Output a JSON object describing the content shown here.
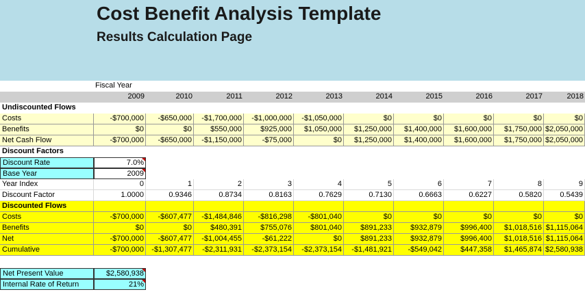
{
  "title": "Cost Benefit Analysis Template",
  "subtitle": "Results Calculation Page",
  "fiscal_year_label": "Fiscal Year",
  "years": [
    "2009",
    "2010",
    "2011",
    "2012",
    "2013",
    "2014",
    "2015",
    "2016",
    "2017",
    "2018"
  ],
  "undiscounted": {
    "header": "Undiscounted Flows",
    "costs_label": "Costs",
    "costs": [
      "-$700,000",
      "-$650,000",
      "-$1,700,000",
      "-$1,000,000",
      "-$1,050,000",
      "$0",
      "$0",
      "$0",
      "$0",
      "$0"
    ],
    "benefits_label": "Benefits",
    "benefits": [
      "$0",
      "$0",
      "$550,000",
      "$925,000",
      "$1,050,000",
      "$1,250,000",
      "$1,400,000",
      "$1,600,000",
      "$1,750,000",
      "$2,050,000"
    ],
    "net_label": "Net Cash Flow",
    "net": [
      "-$700,000",
      "-$650,000",
      "-$1,150,000",
      "-$75,000",
      "$0",
      "$1,250,000",
      "$1,400,000",
      "$1,600,000",
      "$1,750,000",
      "$2,050,000"
    ]
  },
  "factors": {
    "header": "Discount Factors",
    "rate_label": "Discount Rate",
    "rate": "7.0%",
    "base_year_label": "Base Year",
    "base_year": "2009",
    "index_label": "Year Index",
    "index": [
      "0",
      "1",
      "2",
      "3",
      "4",
      "5",
      "6",
      "7",
      "8",
      "9"
    ],
    "factor_label": "Discount Factor",
    "factor": [
      "1.0000",
      "0.9346",
      "0.8734",
      "0.8163",
      "0.7629",
      "0.7130",
      "0.6663",
      "0.6227",
      "0.5820",
      "0.5439"
    ]
  },
  "discounted": {
    "header": "Discounted Flows",
    "costs_label": "Costs",
    "costs": [
      "-$700,000",
      "-$607,477",
      "-$1,484,846",
      "-$816,298",
      "-$801,040",
      "$0",
      "$0",
      "$0",
      "$0",
      "$0"
    ],
    "benefits_label": "Benefits",
    "benefits": [
      "$0",
      "$0",
      "$480,391",
      "$755,076",
      "$801,040",
      "$891,233",
      "$932,879",
      "$996,400",
      "$1,018,516",
      "$1,115,064"
    ],
    "net_label": "Net",
    "net": [
      "-$700,000",
      "-$607,477",
      "-$1,004,455",
      "-$61,222",
      "$0",
      "$891,233",
      "$932,879",
      "$996,400",
      "$1,018,516",
      "$1,115,064"
    ],
    "cum_label": "Cumulative",
    "cum": [
      "-$700,000",
      "-$1,307,477",
      "-$2,311,931",
      "-$2,373,154",
      "-$2,373,154",
      "-$1,481,921",
      "-$549,042",
      "$447,358",
      "$1,465,874",
      "$2,580,938"
    ]
  },
  "results": {
    "npv_label": "Net Present Value",
    "npv": "$2,580,938",
    "irr_label": "Internal Rate of Return",
    "irr": "21%"
  },
  "colors": {
    "banner": "#b7dde8",
    "light_yellow": "#ffffcc",
    "yellow": "#ffff00",
    "cyan": "#99ffff",
    "header_gray": "#cfcfcf"
  }
}
